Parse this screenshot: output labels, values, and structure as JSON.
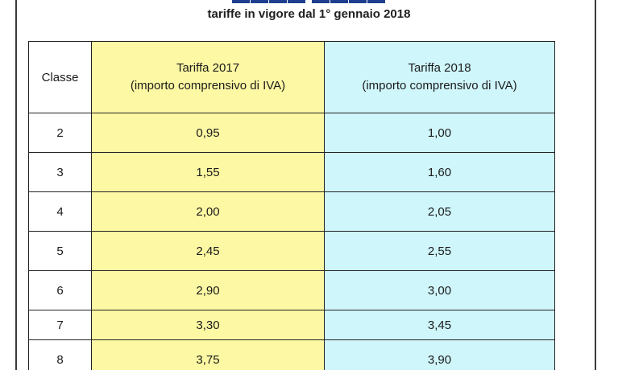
{
  "header": {
    "subtitle": "tariffe in vigore dal 1° gennaio 2018"
  },
  "table": {
    "columns": {
      "classe": "Classe",
      "col_2017": {
        "title": "Tariffa 2017",
        "note": "(importo comprensivo di IVA)"
      },
      "col_2018": {
        "title": "Tariffa 2018",
        "note": "(importo comprensivo di IVA)"
      }
    },
    "rows": [
      {
        "classe": "2",
        "t2017": "0,95",
        "t2018": "1,00"
      },
      {
        "classe": "3",
        "t2017": "1,55",
        "t2018": "1,60"
      },
      {
        "classe": "4",
        "t2017": "2,00",
        "t2018": "2,05"
      },
      {
        "classe": "5",
        "t2017": "2,45",
        "t2018": "2,55"
      },
      {
        "classe": "6",
        "t2017": "2,90",
        "t2018": "3,00"
      },
      {
        "classe": "7",
        "t2017": "3,30",
        "t2018": "3,45"
      },
      {
        "classe": "8",
        "t2017": "3,75",
        "t2018": "3,90"
      }
    ]
  },
  "colors": {
    "col_2017_bg": "#fdf8a3",
    "col_2018_bg": "#cff6fb",
    "title_color": "#1e3f8f"
  }
}
